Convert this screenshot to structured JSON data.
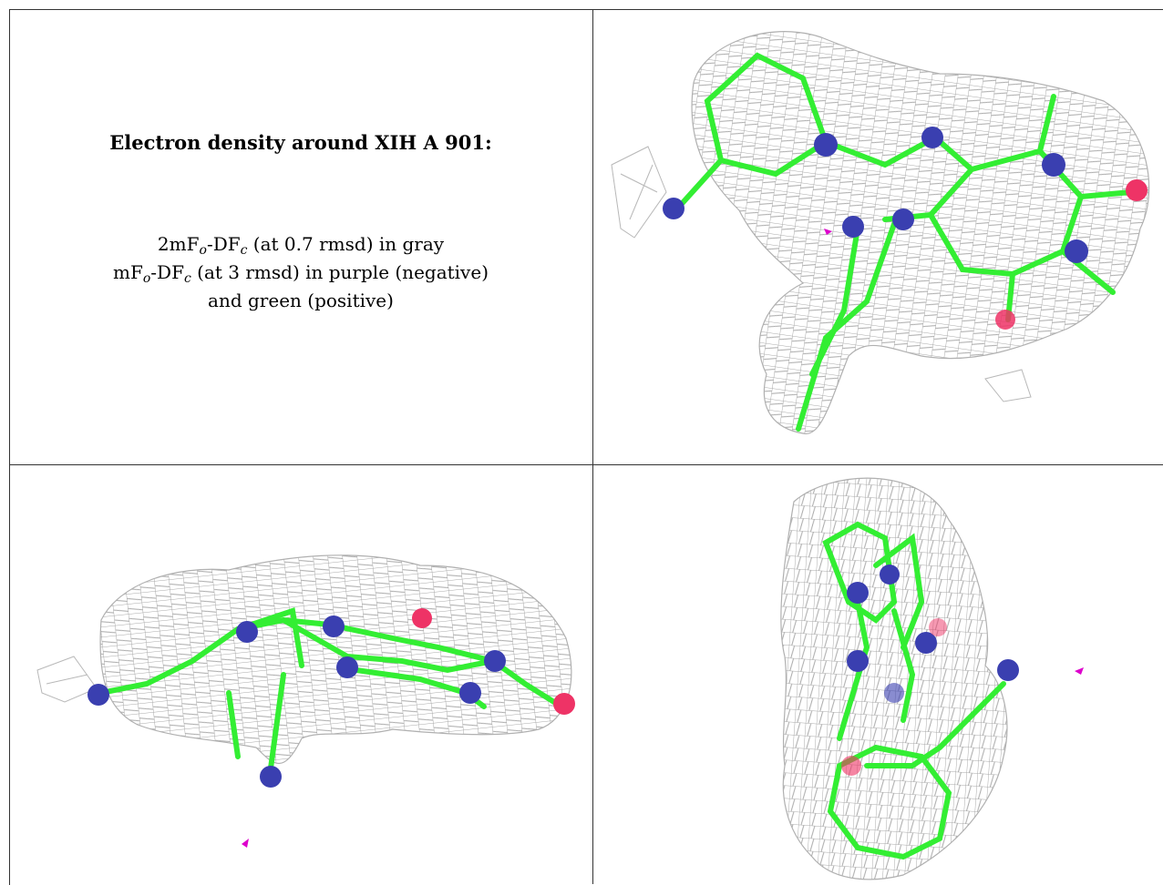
{
  "caption": {
    "title": "Electron density around XIH A 901:",
    "line1_pre": "2mF",
    "line1_sub1": "o",
    "line1_mid": "-DF",
    "line1_sub2": "c",
    "line1_post": " (at 0.7 rmsd) in gray",
    "line2_pre": "mF",
    "line2_sub1": "o",
    "line2_mid": "-DF",
    "line2_sub2": "c",
    "line2_post": " (at 3 rmsd) in purple (negative)",
    "line3": "and green (positive)"
  },
  "colors": {
    "mesh": "#a9a9a9",
    "carbon": "#33ee33",
    "nitrogen": "#3a3fb0",
    "oxygen": "#ee3366",
    "negative_density": "#dd00cc"
  }
}
